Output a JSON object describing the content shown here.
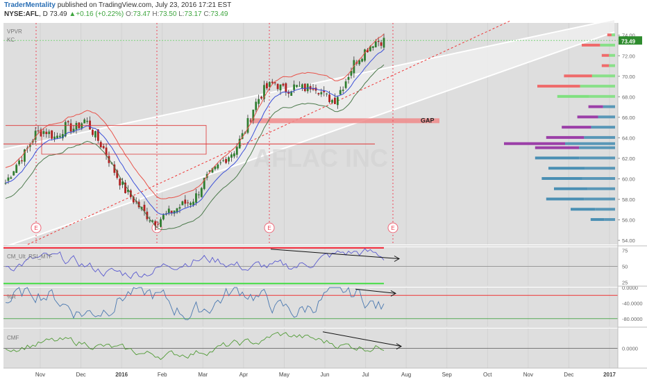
{
  "header": {
    "publisher": "TraderMentality",
    "published_text": "published on TradingView.com, July 23, 2016 17:21 EST",
    "symbol": "NYSE:AFL",
    "interval": "D",
    "last": "73.49",
    "change": "+0.16 (+0.22%)",
    "open_label": "O:",
    "open": "73.47",
    "high_label": "H:",
    "high": "73.50",
    "low_label": "L:",
    "low": "73.17",
    "close_label": "C:",
    "close": "73.49"
  },
  "watermark": "AFLAC INC",
  "indicators": [
    "VPVR",
    "KC"
  ],
  "annotations": {
    "gap": "GAP",
    "earnings_marker": "E"
  },
  "panes": {
    "rsi": {
      "name": "CM_Ult_RSI_MTF",
      "ticks": [
        "75",
        "50",
        "25"
      ]
    },
    "wr": {
      "name": "%R",
      "ticks": [
        "0.0000",
        "-40.0000",
        "-80.0000"
      ]
    },
    "cmf": {
      "name": "CMF",
      "ticks": [
        "0.0000"
      ]
    }
  },
  "colors": {
    "panel_bg": "#dedede",
    "channel_fill": "#efefef",
    "up_candle": "#2f7d2f",
    "down_candle": "#b02020",
    "keltner": "#e8534a",
    "volume_red": "#ef6b6b",
    "volume_green": "#7fe07f",
    "volume_purple": "#9b3fa8",
    "volume_blue": "#4a8fb3",
    "rsi_line": "#5a5ad0",
    "wr_line": "#4a78b0",
    "cmf_line": "#4f9a34"
  },
  "chart_data": [
    {
      "type": "candlestick",
      "title": "NYSE:AFL D",
      "x_ticks": [
        "Nov",
        "Dec",
        "2016",
        "Feb",
        "Mar",
        "Apr",
        "May",
        "Jun",
        "Jul",
        "Aug",
        "Sep",
        "Oct",
        "Nov",
        "Dec",
        "2017"
      ],
      "y_ticks": [
        "74.00",
        "72.00",
        "70.00",
        "68.00",
        "66.00",
        "64.00",
        "62.00",
        "60.00",
        "58.00",
        "56.00",
        "54.00"
      ],
      "ylim": [
        53.6,
        75.2
      ],
      "price_label": "73.49",
      "dates": [
        "Oct",
        "Oct",
        "Oct",
        "Nov",
        "Nov",
        "Nov",
        "Nov",
        "Nov",
        "Dec",
        "Dec",
        "Dec",
        "Dec",
        "Jan",
        "Jan",
        "Jan",
        "Jan",
        "Feb",
        "Feb",
        "Feb",
        "Feb",
        "Mar",
        "Mar",
        "Mar",
        "Mar",
        "Apr",
        "Apr",
        "Apr",
        "Apr",
        "May",
        "May",
        "May",
        "May",
        "Jun",
        "Jun",
        "Jun",
        "Jun",
        "Jul",
        "Jul",
        "Jul"
      ],
      "close": [
        59.6,
        61.3,
        62.6,
        64.4,
        64.7,
        64.0,
        65.1,
        64.9,
        65.8,
        64.2,
        62.7,
        60.6,
        58.9,
        57.8,
        56.6,
        55.8,
        56.4,
        57.0,
        57.6,
        58.1,
        59.9,
        60.8,
        61.9,
        62.8,
        64.6,
        67.2,
        68.7,
        69.4,
        68.6,
        69.0,
        68.8,
        69.2,
        68.1,
        67.6,
        69.3,
        71.3,
        72.4,
        73.4,
        73.49
      ],
      "keltner_band_width": 1.5,
      "earnings_markers": [
        "Oct",
        "Jan",
        "Apr",
        "Jul"
      ]
    },
    {
      "type": "volume_profile",
      "title": "VPVR",
      "price_levels": [
        56.0,
        57.0,
        58.0,
        59.0,
        60.0,
        61.0,
        62.0,
        63.0,
        63.4,
        64.0,
        65.0,
        66.0,
        67.0,
        68.0,
        69.0,
        70.0,
        71.0,
        72.0,
        73.0,
        74.0
      ],
      "volume": [
        0.22,
        0.4,
        0.62,
        0.55,
        0.66,
        0.6,
        0.72,
        0.72,
        1.0,
        0.62,
        0.48,
        0.34,
        0.24,
        0.52,
        0.7,
        0.46,
        0.12,
        0.12,
        0.3,
        0.07
      ]
    },
    {
      "type": "line",
      "name": "CM_Ult_RSI_MTF",
      "ylim": [
        20,
        80
      ],
      "hlines": [
        80,
        50,
        20
      ]
    },
    {
      "type": "line",
      "name": "%R",
      "ylim": [
        -100,
        0
      ],
      "hlines": [
        -20,
        -80
      ]
    },
    {
      "type": "line",
      "name": "CMF",
      "ylim": [
        -0.3,
        0.3
      ],
      "hlines": [
        0
      ]
    }
  ]
}
